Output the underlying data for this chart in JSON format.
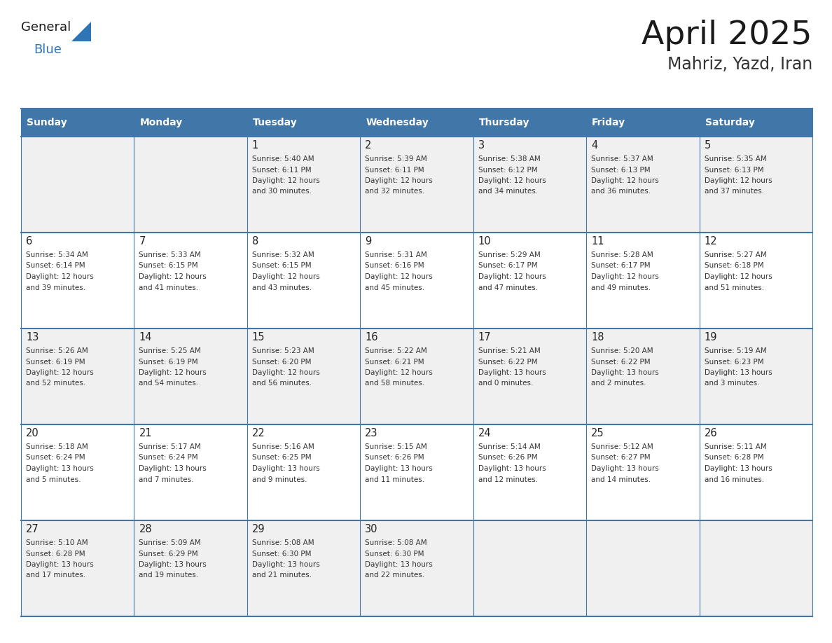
{
  "title": "April 2025",
  "subtitle": "Mahriz, Yazd, Iran",
  "days_of_week": [
    "Sunday",
    "Monday",
    "Tuesday",
    "Wednesday",
    "Thursday",
    "Friday",
    "Saturday"
  ],
  "header_bg_color": "#4176a8",
  "header_text_color": "#ffffff",
  "row_bg_odd": "#f0f0f0",
  "row_bg_even": "#ffffff",
  "border_color": "#4176a8",
  "day_number_color": "#222222",
  "cell_text_color": "#333333",
  "title_color": "#1a1a1a",
  "subtitle_color": "#333333",
  "logo_general_color": "#1a1a1a",
  "logo_blue_color": "#2e75b6",
  "calendar_data": [
    [
      {
        "day": null,
        "sunrise": null,
        "sunset": null,
        "daylight_line1": null,
        "daylight_line2": null
      },
      {
        "day": null,
        "sunrise": null,
        "sunset": null,
        "daylight_line1": null,
        "daylight_line2": null
      },
      {
        "day": 1,
        "sunrise": "5:40 AM",
        "sunset": "6:11 PM",
        "daylight_line1": "12 hours",
        "daylight_line2": "and 30 minutes."
      },
      {
        "day": 2,
        "sunrise": "5:39 AM",
        "sunset": "6:11 PM",
        "daylight_line1": "12 hours",
        "daylight_line2": "and 32 minutes."
      },
      {
        "day": 3,
        "sunrise": "5:38 AM",
        "sunset": "6:12 PM",
        "daylight_line1": "12 hours",
        "daylight_line2": "and 34 minutes."
      },
      {
        "day": 4,
        "sunrise": "5:37 AM",
        "sunset": "6:13 PM",
        "daylight_line1": "12 hours",
        "daylight_line2": "and 36 minutes."
      },
      {
        "day": 5,
        "sunrise": "5:35 AM",
        "sunset": "6:13 PM",
        "daylight_line1": "12 hours",
        "daylight_line2": "and 37 minutes."
      }
    ],
    [
      {
        "day": 6,
        "sunrise": "5:34 AM",
        "sunset": "6:14 PM",
        "daylight_line1": "12 hours",
        "daylight_line2": "and 39 minutes."
      },
      {
        "day": 7,
        "sunrise": "5:33 AM",
        "sunset": "6:15 PM",
        "daylight_line1": "12 hours",
        "daylight_line2": "and 41 minutes."
      },
      {
        "day": 8,
        "sunrise": "5:32 AM",
        "sunset": "6:15 PM",
        "daylight_line1": "12 hours",
        "daylight_line2": "and 43 minutes."
      },
      {
        "day": 9,
        "sunrise": "5:31 AM",
        "sunset": "6:16 PM",
        "daylight_line1": "12 hours",
        "daylight_line2": "and 45 minutes."
      },
      {
        "day": 10,
        "sunrise": "5:29 AM",
        "sunset": "6:17 PM",
        "daylight_line1": "12 hours",
        "daylight_line2": "and 47 minutes."
      },
      {
        "day": 11,
        "sunrise": "5:28 AM",
        "sunset": "6:17 PM",
        "daylight_line1": "12 hours",
        "daylight_line2": "and 49 minutes."
      },
      {
        "day": 12,
        "sunrise": "5:27 AM",
        "sunset": "6:18 PM",
        "daylight_line1": "12 hours",
        "daylight_line2": "and 51 minutes."
      }
    ],
    [
      {
        "day": 13,
        "sunrise": "5:26 AM",
        "sunset": "6:19 PM",
        "daylight_line1": "12 hours",
        "daylight_line2": "and 52 minutes."
      },
      {
        "day": 14,
        "sunrise": "5:25 AM",
        "sunset": "6:19 PM",
        "daylight_line1": "12 hours",
        "daylight_line2": "and 54 minutes."
      },
      {
        "day": 15,
        "sunrise": "5:23 AM",
        "sunset": "6:20 PM",
        "daylight_line1": "12 hours",
        "daylight_line2": "and 56 minutes."
      },
      {
        "day": 16,
        "sunrise": "5:22 AM",
        "sunset": "6:21 PM",
        "daylight_line1": "12 hours",
        "daylight_line2": "and 58 minutes."
      },
      {
        "day": 17,
        "sunrise": "5:21 AM",
        "sunset": "6:22 PM",
        "daylight_line1": "13 hours",
        "daylight_line2": "and 0 minutes."
      },
      {
        "day": 18,
        "sunrise": "5:20 AM",
        "sunset": "6:22 PM",
        "daylight_line1": "13 hours",
        "daylight_line2": "and 2 minutes."
      },
      {
        "day": 19,
        "sunrise": "5:19 AM",
        "sunset": "6:23 PM",
        "daylight_line1": "13 hours",
        "daylight_line2": "and 3 minutes."
      }
    ],
    [
      {
        "day": 20,
        "sunrise": "5:18 AM",
        "sunset": "6:24 PM",
        "daylight_line1": "13 hours",
        "daylight_line2": "and 5 minutes."
      },
      {
        "day": 21,
        "sunrise": "5:17 AM",
        "sunset": "6:24 PM",
        "daylight_line1": "13 hours",
        "daylight_line2": "and 7 minutes."
      },
      {
        "day": 22,
        "sunrise": "5:16 AM",
        "sunset": "6:25 PM",
        "daylight_line1": "13 hours",
        "daylight_line2": "and 9 minutes."
      },
      {
        "day": 23,
        "sunrise": "5:15 AM",
        "sunset": "6:26 PM",
        "daylight_line1": "13 hours",
        "daylight_line2": "and 11 minutes."
      },
      {
        "day": 24,
        "sunrise": "5:14 AM",
        "sunset": "6:26 PM",
        "daylight_line1": "13 hours",
        "daylight_line2": "and 12 minutes."
      },
      {
        "day": 25,
        "sunrise": "5:12 AM",
        "sunset": "6:27 PM",
        "daylight_line1": "13 hours",
        "daylight_line2": "and 14 minutes."
      },
      {
        "day": 26,
        "sunrise": "5:11 AM",
        "sunset": "6:28 PM",
        "daylight_line1": "13 hours",
        "daylight_line2": "and 16 minutes."
      }
    ],
    [
      {
        "day": 27,
        "sunrise": "5:10 AM",
        "sunset": "6:28 PM",
        "daylight_line1": "13 hours",
        "daylight_line2": "and 17 minutes."
      },
      {
        "day": 28,
        "sunrise": "5:09 AM",
        "sunset": "6:29 PM",
        "daylight_line1": "13 hours",
        "daylight_line2": "and 19 minutes."
      },
      {
        "day": 29,
        "sunrise": "5:08 AM",
        "sunset": "6:30 PM",
        "daylight_line1": "13 hours",
        "daylight_line2": "and 21 minutes."
      },
      {
        "day": 30,
        "sunrise": "5:08 AM",
        "sunset": "6:30 PM",
        "daylight_line1": "13 hours",
        "daylight_line2": "and 22 minutes."
      },
      {
        "day": null,
        "sunrise": null,
        "sunset": null,
        "daylight_line1": null,
        "daylight_line2": null
      },
      {
        "day": null,
        "sunrise": null,
        "sunset": null,
        "daylight_line1": null,
        "daylight_line2": null
      },
      {
        "day": null,
        "sunrise": null,
        "sunset": null,
        "daylight_line1": null,
        "daylight_line2": null
      }
    ]
  ]
}
